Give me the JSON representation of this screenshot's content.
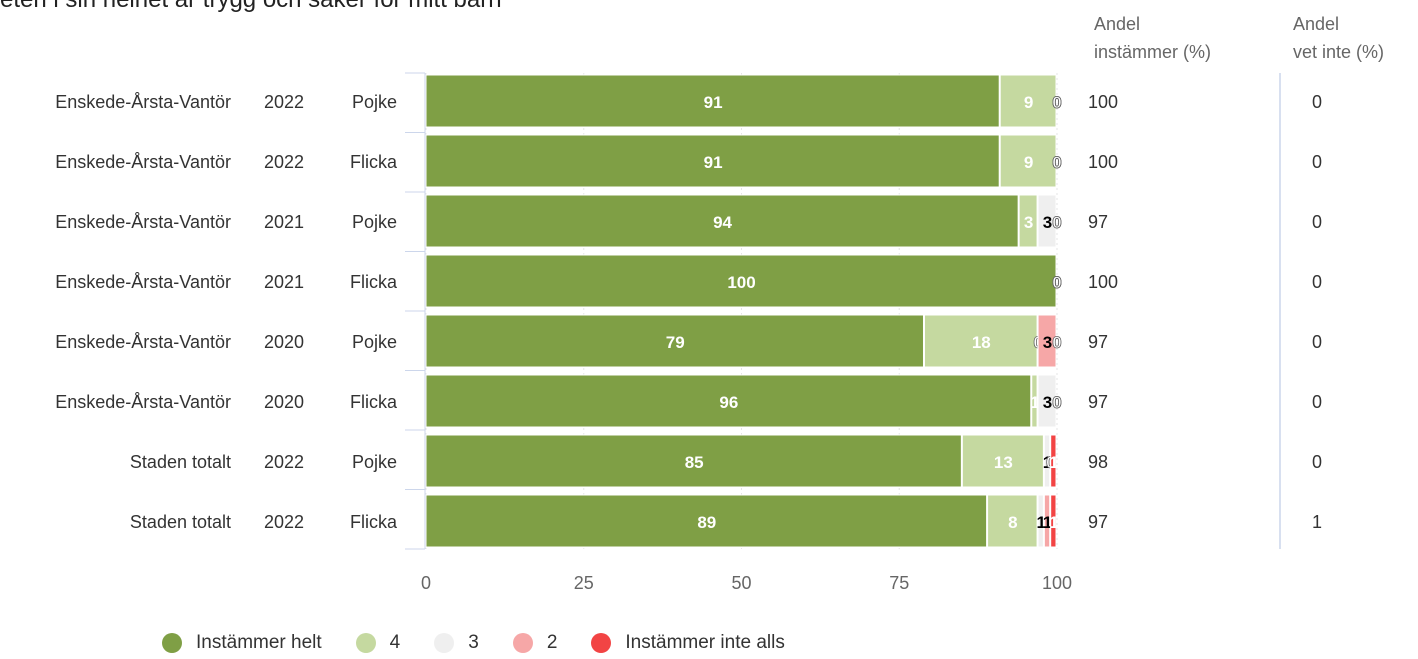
{
  "title": "eten i sin helhet är trygg och säker för mitt barn",
  "columns": {
    "agree_header_line1": "Andel",
    "agree_header_line2": "instämmer (%)",
    "dontknow_header_line1": "Andel",
    "dontknow_header_line2": "vet inte (%)"
  },
  "chart_data": {
    "type": "bar",
    "orientation": "horizontal",
    "stacked": true,
    "xlim": [
      0,
      100
    ],
    "x_ticks": [
      0,
      25,
      50,
      75,
      100
    ],
    "rows": [
      {
        "district": "Enskede-Årsta-Vantör",
        "year": "2022",
        "gender": "Pojke",
        "agree": "100",
        "dont_know": "0"
      },
      {
        "district": "Enskede-Årsta-Vantör",
        "year": "2022",
        "gender": "Flicka",
        "agree": "100",
        "dont_know": "0"
      },
      {
        "district": "Enskede-Årsta-Vantör",
        "year": "2021",
        "gender": "Pojke",
        "agree": "97",
        "dont_know": "0"
      },
      {
        "district": "Enskede-Årsta-Vantör",
        "year": "2021",
        "gender": "Flicka",
        "agree": "100",
        "dont_know": "0"
      },
      {
        "district": "Enskede-Årsta-Vantör",
        "year": "2020",
        "gender": "Pojke",
        "agree": "97",
        "dont_know": "0"
      },
      {
        "district": "Enskede-Årsta-Vantör",
        "year": "2020",
        "gender": "Flicka",
        "agree": "97",
        "dont_know": "0"
      },
      {
        "district": "Staden totalt",
        "year": "2022",
        "gender": "Pojke",
        "agree": "98",
        "dont_know": "0"
      },
      {
        "district": "Staden totalt",
        "year": "2022",
        "gender": "Flicka",
        "agree": "97",
        "dont_know": "1"
      }
    ],
    "series": [
      {
        "name": "Instämmer helt",
        "color": "#7f9f45",
        "label_color": "#ffffff",
        "values": [
          91,
          91,
          94,
          100,
          79,
          96,
          85,
          89
        ]
      },
      {
        "name": "4",
        "color": "#c5d9a0",
        "label_color": "#ffffff",
        "values": [
          9,
          9,
          3,
          0,
          18,
          1,
          13,
          8
        ]
      },
      {
        "name": "3",
        "color": "#efefef",
        "label_color": "#000000",
        "values": [
          0,
          0,
          3,
          0,
          0,
          3,
          1,
          1
        ]
      },
      {
        "name": "2",
        "color": "#f6a7a7",
        "label_color": "#000000",
        "values": [
          0,
          0,
          0,
          0,
          3,
          0,
          0,
          1
        ]
      },
      {
        "name": "Instämmer inte alls",
        "color": "#f24444",
        "label_color": "#ffffff",
        "values": [
          0,
          0,
          0,
          0,
          0,
          0,
          1,
          1
        ]
      }
    ]
  }
}
